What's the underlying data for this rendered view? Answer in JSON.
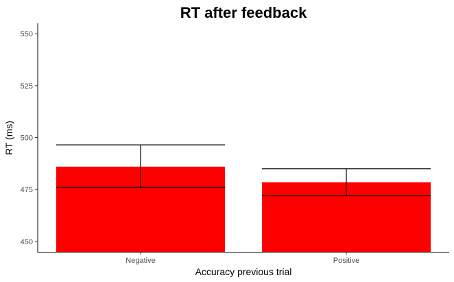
{
  "chart_data": {
    "type": "bar",
    "title": "RT after feedback",
    "xlabel": "Accuracy previous trial",
    "ylabel": "RT (ms)",
    "categories": [
      "Negative",
      "Positive"
    ],
    "values": [
      486,
      478.5
    ],
    "error_low": [
      476,
      472
    ],
    "error_high": [
      496.5,
      485
    ],
    "yticks": [
      450,
      475,
      500,
      525,
      550
    ],
    "ylim": [
      445,
      555
    ],
    "grid": false,
    "bar_color": "#ff0000"
  }
}
